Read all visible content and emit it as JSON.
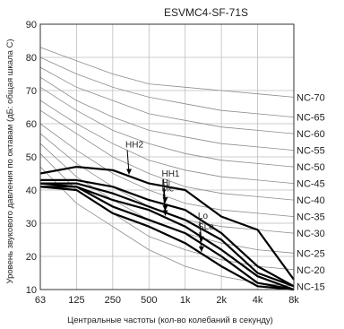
{
  "chart_data": {
    "type": "line",
    "title": "ESVMC4-SF-71S",
    "xlabel": "Центральные частоты (кол-во колебаний в секунду)",
    "ylabel": "Уровень звукового давления по октавам (дБ: общая шкала С)",
    "x": [
      "63",
      "125",
      "250",
      "500",
      "1k",
      "2k",
      "4k",
      "8k"
    ],
    "ylim": [
      10,
      90
    ],
    "yticks": [
      "10",
      "20",
      "30",
      "40",
      "50",
      "60",
      "70",
      "80",
      "90"
    ],
    "grid": true,
    "nc_curves": [
      {
        "name": "NC-70",
        "values": [
          83,
          79,
          75,
          72,
          71,
          70,
          69,
          68
        ]
      },
      {
        "name": "NC-65",
        "values": [
          80,
          75,
          71,
          68,
          66,
          64,
          63,
          62
        ]
      },
      {
        "name": "NC-60",
        "values": [
          77,
          71,
          67,
          63,
          61,
          59,
          58,
          57
        ]
      },
      {
        "name": "NC-55",
        "values": [
          74,
          67,
          62,
          58,
          56,
          54,
          53,
          52
        ]
      },
      {
        "name": "NC-50",
        "values": [
          71,
          64,
          58,
          54,
          51,
          49,
          48,
          47
        ]
      },
      {
        "name": "NC-45",
        "values": [
          67,
          60,
          54,
          49,
          46,
          44,
          43,
          42
        ]
      },
      {
        "name": "NC-40",
        "values": [
          64,
          57,
          50,
          45,
          41,
          39,
          38,
          37
        ]
      },
      {
        "name": "NC-35",
        "values": [
          60,
          52,
          45,
          40,
          36,
          34,
          33,
          32
        ]
      },
      {
        "name": "NC-30",
        "values": [
          57,
          48,
          41,
          35,
          31,
          29,
          28,
          27
        ]
      },
      {
        "name": "NC-25",
        "values": [
          54,
          44,
          37,
          31,
          27,
          24,
          22,
          21
        ]
      },
      {
        "name": "NC-20",
        "values": [
          51,
          40,
          33,
          26,
          22,
          19,
          17,
          16
        ]
      },
      {
        "name": "NC-15",
        "values": [
          47,
          36,
          29,
          22,
          17,
          14,
          12,
          11
        ]
      }
    ],
    "series": [
      {
        "name": "HH2",
        "values": [
          45,
          47,
          46,
          42,
          40,
          32,
          28,
          13
        ]
      },
      {
        "name": "HH1",
        "values": [
          43,
          43,
          41,
          37,
          34,
          27,
          17,
          11
        ]
      },
      {
        "name": "Hi",
        "values": [
          42,
          42,
          39,
          35,
          31,
          25,
          15,
          11
        ]
      },
      {
        "name": "Me",
        "values": [
          42,
          41,
          37,
          34,
          29,
          22,
          14,
          10
        ]
      },
      {
        "name": "Lo",
        "values": [
          41,
          41,
          35,
          31,
          27,
          20,
          12,
          10
        ]
      },
      {
        "name": "SLo",
        "values": [
          41,
          40,
          33,
          29,
          24,
          17,
          11,
          10
        ]
      }
    ],
    "series_label_anchor": [
      "500",
      "1k",
      "1k",
      "1k",
      "2k",
      "2k"
    ]
  }
}
